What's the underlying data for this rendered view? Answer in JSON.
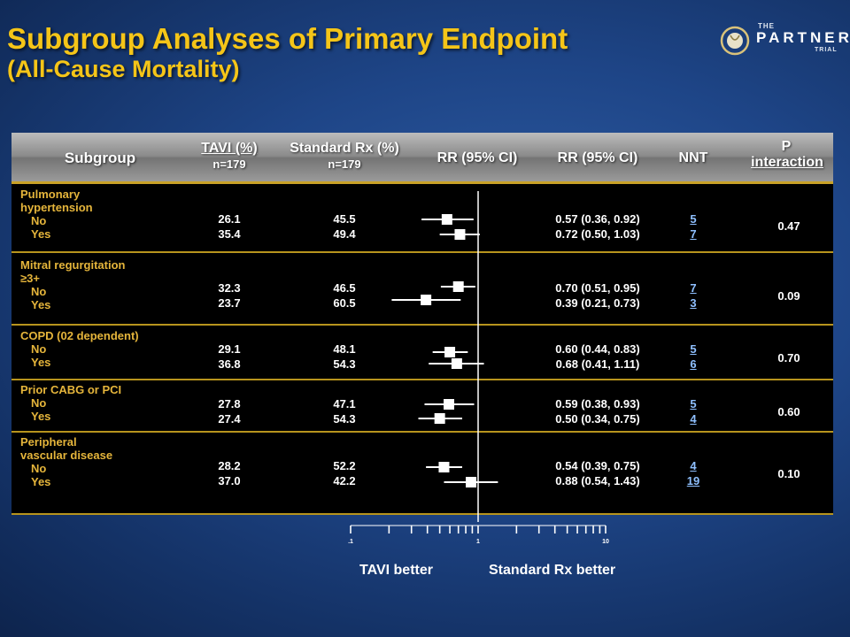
{
  "title": {
    "line1": "Subgroup Analyses of Primary Endpoint",
    "line2": "(All-Cause Mortality)"
  },
  "logo": {
    "the": "THE",
    "partner": "PARTNER",
    "trial": "TRIAL"
  },
  "table": {
    "headers": {
      "subgroup": "Subgroup",
      "tavi": "TAVI (%)",
      "tavi_n": "n=179",
      "std": "Standard Rx (%)",
      "std_n": "n=179",
      "rr_plot": "RR (95% CI)",
      "rr_text": "RR (95% CI)",
      "nnt": "NNT",
      "p1": "P",
      "p2": "interaction"
    },
    "groups": [
      {
        "label_lines": [
          "Pulmonary",
          "hypertension"
        ],
        "sub": [
          "No",
          "Yes"
        ],
        "tavi": [
          "26.1",
          "35.4"
        ],
        "std": [
          "45.5",
          "49.4"
        ],
        "rr_text": [
          "0.57 (0.36, 0.92)",
          "0.72 (0.50, 1.03)"
        ],
        "nnt": [
          "5",
          "7"
        ],
        "p": "0.47"
      },
      {
        "label_lines": [
          "Mitral regurgitation",
          "≥3+"
        ],
        "sub": [
          "No",
          "Yes"
        ],
        "tavi": [
          "32.3",
          "23.7"
        ],
        "std": [
          "46.5",
          "60.5"
        ],
        "rr_text": [
          "0.70 (0.51, 0.95)",
          "0.39 (0.21, 0.73)"
        ],
        "nnt": [
          "7",
          "3"
        ],
        "p": "0.09"
      },
      {
        "label_lines": [
          "COPD (02 dependent)"
        ],
        "sub": [
          "No",
          "Yes"
        ],
        "tavi": [
          "29.1",
          "36.8"
        ],
        "std": [
          "48.1",
          "54.3"
        ],
        "rr_text": [
          "0.60 (0.44, 0.83)",
          "0.68 (0.41, 1.11)"
        ],
        "nnt": [
          "5",
          "6"
        ],
        "p": "0.70"
      },
      {
        "label_lines": [
          "Prior CABG or PCI"
        ],
        "sub": [
          "No",
          "Yes"
        ],
        "tavi": [
          "27.8",
          "27.4"
        ],
        "std": [
          "47.1",
          "54.3"
        ],
        "rr_text": [
          "0.59 (0.38, 0.93)",
          "0.50 (0.34, 0.75)"
        ],
        "nnt": [
          "5",
          "4"
        ],
        "p": "0.60"
      },
      {
        "label_lines": [
          "Peripheral",
          "vascular disease"
        ],
        "sub": [
          "No",
          "Yes"
        ],
        "tavi": [
          "28.2",
          "37.0"
        ],
        "std": [
          "52.2",
          "42.2"
        ],
        "rr_text": [
          "0.54 (0.39, 0.75)",
          "0.88 (0.54, 1.43)"
        ],
        "nnt": [
          "4",
          "19"
        ],
        "p": "0.10"
      }
    ]
  },
  "chart_data": {
    "type": "scatter",
    "subtype": "forest",
    "x_scale": "log",
    "xlim": [
      0.1,
      10
    ],
    "reference_line": 1,
    "tick_labels": [
      ".1",
      "1",
      "10"
    ],
    "left_label": "TAVI better",
    "right_label": "Standard Rx better",
    "series": [
      {
        "rows": [
          "Pulmonary hypertension No",
          "Pulmonary hypertension Yes",
          "Mitral regurgitation ≥3+ No",
          "Mitral regurgitation ≥3+ Yes",
          "COPD (02 dependent) No",
          "COPD (02 dependent) Yes",
          "Prior CABG or PCI No",
          "Prior CABG or PCI Yes",
          "Peripheral vascular disease No",
          "Peripheral vascular disease Yes"
        ],
        "rr": [
          0.57,
          0.72,
          0.7,
          0.39,
          0.6,
          0.68,
          0.59,
          0.5,
          0.54,
          0.88
        ],
        "lower": [
          0.36,
          0.5,
          0.51,
          0.21,
          0.44,
          0.41,
          0.38,
          0.34,
          0.39,
          0.54
        ],
        "upper": [
          0.92,
          1.03,
          0.95,
          0.73,
          0.83,
          1.11,
          0.93,
          0.75,
          0.75,
          1.43
        ]
      }
    ]
  }
}
